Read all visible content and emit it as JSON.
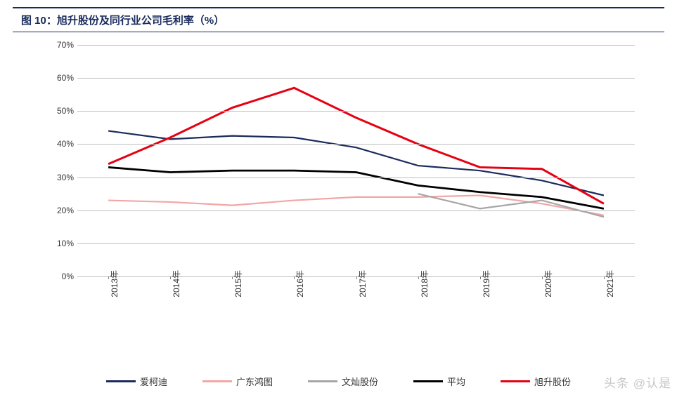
{
  "title": "图 10：旭升股份及同行业公司毛利率（%）",
  "chart": {
    "type": "line",
    "background_color": "#ffffff",
    "grid_color": "#bfbfbf",
    "text_color": "#333333",
    "title_color": "#1a2b5c",
    "title_fontsize": 15,
    "label_fontsize": 12,
    "ylim": [
      0,
      70
    ],
    "ytick_step": 10,
    "y_suffix": "%",
    "categories": [
      "2013年",
      "2014年",
      "2015年",
      "2016年",
      "2017年",
      "2018年",
      "2019年",
      "2020年",
      "2021年"
    ],
    "series": [
      {
        "name": "爱柯迪",
        "color": "#1a2b5c",
        "line_width": 2.2,
        "values": [
          44,
          41.5,
          42.5,
          42,
          39,
          33.5,
          32,
          29,
          24.5
        ]
      },
      {
        "name": "广东鸿图",
        "color": "#f2a6a6",
        "line_width": 2.2,
        "values": [
          23,
          22.5,
          21.5,
          23,
          24,
          24,
          24.5,
          22,
          18.5
        ]
      },
      {
        "name": "文灿股份",
        "color": "#a6a6a6",
        "line_width": 2.2,
        "values": [
          null,
          null,
          null,
          null,
          null,
          25,
          20.5,
          23,
          18
        ]
      },
      {
        "name": "平均",
        "color": "#000000",
        "line_width": 2.8,
        "values": [
          33,
          31.5,
          32,
          32,
          31.5,
          27.5,
          25.5,
          24,
          20.5
        ]
      },
      {
        "name": "旭升股份",
        "color": "#e60012",
        "line_width": 3,
        "values": [
          34,
          42,
          51,
          57,
          48,
          40,
          33,
          32.5,
          22
        ]
      }
    ]
  },
  "watermark": "头条 @认是"
}
